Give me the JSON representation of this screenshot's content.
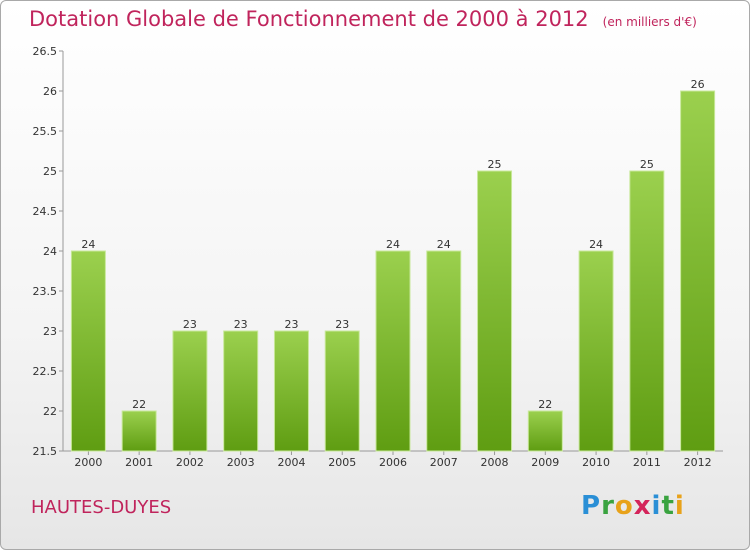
{
  "title": "Dotation Globale de Fonctionnement de 2000 à 2012",
  "subtitle": "(en milliers d'€)",
  "commune": "HAUTES-DUYES",
  "logo": {
    "p": "P",
    "r": "r",
    "o": "o",
    "x": "x",
    "i1": "i",
    "t": "t",
    "i2": "i"
  },
  "colors": {
    "bar_top": "#9bd04e",
    "bar_bottom": "#5f9d12",
    "text_accent": "#c0245c"
  },
  "chart_data": {
    "type": "bar",
    "title": "Dotation Globale de Fonctionnement de 2000 à 2012",
    "xlabel": "",
    "ylabel": "",
    "categories": [
      "2000",
      "2001",
      "2002",
      "2003",
      "2004",
      "2005",
      "2006",
      "2007",
      "2008",
      "2009",
      "2010",
      "2011",
      "2012"
    ],
    "values": [
      24,
      22,
      23,
      23,
      23,
      23,
      24,
      24,
      25,
      22,
      24,
      25,
      26
    ],
    "labels": [
      "24",
      "22",
      "23",
      "23",
      "23",
      "23",
      "24",
      "24",
      "25",
      "22",
      "24",
      "25",
      "26"
    ],
    "ylim": [
      21.5,
      26.5
    ],
    "yticks": [
      "21.5",
      "22",
      "22.5",
      "23",
      "23.5",
      "24",
      "24.5",
      "25",
      "25.5",
      "26",
      "26.5"
    ],
    "grid": false
  }
}
